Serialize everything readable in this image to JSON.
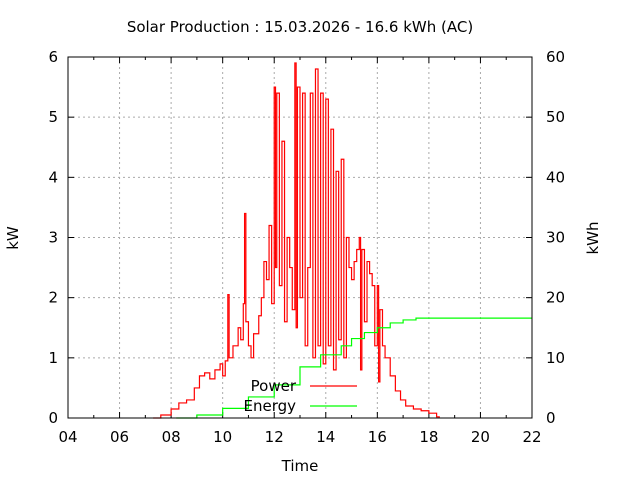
{
  "chart_data": {
    "type": "line",
    "title": "Solar Production : 15.03.2026 - 16.6 kWh (AC)",
    "xlabel": "Time",
    "ylabel": "kW",
    "y2label": "kWh",
    "xlim": [
      4,
      22
    ],
    "ylim": [
      0,
      6
    ],
    "y2lim": [
      0,
      60
    ],
    "grid": true,
    "legend_position": "bottom-center",
    "x_ticks": [
      "04",
      "06",
      "08",
      "10",
      "12",
      "14",
      "16",
      "18",
      "20",
      "22"
    ],
    "y_ticks": [
      "0",
      "1",
      "2",
      "3",
      "4",
      "5",
      "6"
    ],
    "y2_ticks": [
      "0",
      "10",
      "20",
      "30",
      "40",
      "50",
      "60"
    ],
    "series": [
      {
        "name": "Power",
        "axis": "left",
        "color": "#ff0000",
        "x": [
          7.3,
          7.6,
          8.0,
          8.3,
          8.6,
          8.9,
          9.1,
          9.3,
          9.5,
          9.7,
          9.9,
          10.0,
          10.1,
          10.2,
          10.25,
          10.4,
          10.6,
          10.7,
          10.8,
          10.85,
          10.9,
          11.0,
          11.1,
          11.2,
          11.4,
          11.5,
          11.6,
          11.7,
          11.8,
          11.9,
          12.0,
          12.05,
          12.1,
          12.2,
          12.3,
          12.4,
          12.5,
          12.6,
          12.7,
          12.8,
          12.85,
          12.9,
          13.0,
          13.1,
          13.2,
          13.3,
          13.4,
          13.5,
          13.6,
          13.7,
          13.8,
          13.9,
          14.0,
          14.1,
          14.2,
          14.3,
          14.4,
          14.5,
          14.6,
          14.7,
          14.8,
          14.9,
          15.0,
          15.1,
          15.2,
          15.3,
          15.35,
          15.4,
          15.5,
          15.6,
          15.7,
          15.8,
          15.9,
          16.0,
          16.05,
          16.1,
          16.2,
          16.3,
          16.5,
          16.7,
          16.9,
          17.1,
          17.4,
          17.7,
          18.0,
          18.3,
          18.4
        ],
        "values": [
          0,
          0.05,
          0.15,
          0.25,
          0.3,
          0.5,
          0.7,
          0.75,
          0.65,
          0.8,
          0.9,
          0.7,
          0.95,
          2.05,
          1.0,
          1.2,
          1.5,
          1.3,
          1.9,
          3.4,
          1.6,
          1.2,
          1.0,
          1.4,
          1.7,
          2.0,
          2.6,
          2.3,
          3.2,
          1.9,
          5.5,
          2.5,
          5.4,
          2.2,
          4.6,
          1.6,
          3.0,
          2.5,
          1.8,
          5.9,
          1.5,
          5.5,
          2.0,
          5.4,
          1.2,
          2.5,
          5.4,
          1.0,
          5.8,
          1.2,
          5.4,
          0.9,
          5.3,
          1.2,
          4.8,
          0.8,
          4.1,
          1.3,
          4.3,
          1.0,
          3.0,
          2.5,
          2.3,
          2.6,
          2.8,
          3.0,
          0.8,
          2.8,
          1.6,
          2.6,
          2.4,
          2.2,
          1.2,
          2.2,
          0.6,
          1.8,
          1.2,
          1.0,
          0.7,
          0.45,
          0.3,
          0.2,
          0.15,
          0.12,
          0.08,
          0.02,
          0
        ]
      },
      {
        "name": "Energy",
        "axis": "right",
        "color": "#00ff00",
        "x": [
          8.2,
          9.0,
          10.0,
          11.0,
          12.0,
          13.0,
          13.8,
          14.6,
          15.0,
          15.5,
          16.0,
          16.5,
          17.0,
          17.5,
          22.0
        ],
        "values": [
          0,
          0.5,
          1.6,
          3.5,
          5.5,
          8.5,
          10.5,
          12.0,
          13.2,
          14.2,
          15.0,
          15.8,
          16.3,
          16.6,
          16.6
        ]
      }
    ]
  }
}
